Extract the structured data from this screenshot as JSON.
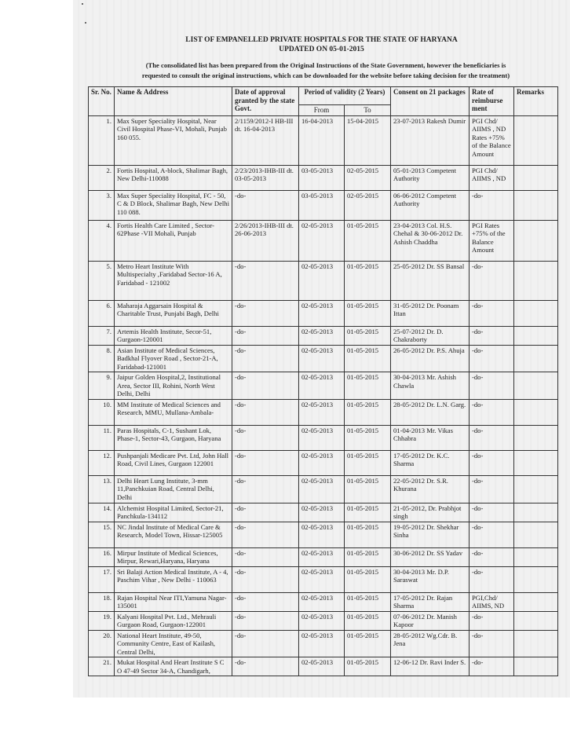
{
  "header": {
    "title": "LIST OF EMPANELLED PRIVATE HOSPITALS FOR THE STATE OF HARYANA",
    "updated": "UPDATED ON 05-01-2015",
    "note_line1": "(The consolidated list has been prepared from the Original Instructions of the State Government, however the beneficiaries is",
    "note_line2": "requested to consult the original instructions, which can be downloaded for the website before taking decision for the treatment)"
  },
  "table": {
    "columns": {
      "sr": "Sr. No.",
      "name": "Name & Address",
      "approval": "Date of approval granted by the state Govt.",
      "validity": "Period of validity (2 Years)",
      "from": "From",
      "to": "To",
      "consent": "Consent on 21 packages",
      "rate": "Rate of reimburse ment",
      "remarks": "Remarks"
    },
    "rows": [
      {
        "sr": "1.",
        "name": "Max Super Speciality Hospital, Near Civil Hospital Phase-VI, Mohali, Punjab 160 055.",
        "approval": "2/1159/2012-I HB-III dt. 16-04-2013",
        "from": "16-04-2013",
        "to": "15-04-2015",
        "consent": "23-07-2013 Rakesh Dumir",
        "rate": "PGI Chd/ AIIMS , ND Rates +75% of the Balance Amount",
        "remarks": ""
      },
      {
        "sr": "2.",
        "name": "Fortis Hospital, A-block, Shalimar Bagh, New Delhi-110088",
        "approval": "2/23/2013-IHB-III dt. 03-05-2013",
        "from": "03-05-2013",
        "to": "02-05-2015",
        "consent": "05-01-2013 Competent Authority",
        "rate": "PGI Chd/ AIIMS , ND",
        "remarks": ""
      },
      {
        "sr": "3.",
        "name": "Max Super Speciality Hospital, FC - 50, C & D Block, Shalimar Bagh, New Delhi 110 088.",
        "approval": "-do-",
        "from": "03-05-2013",
        "to": "02-05-2015",
        "consent": "06-06-2012 Competent Authority",
        "rate": "-do-",
        "remarks": ""
      },
      {
        "sr": "4.",
        "name": "Fortis Health Care Limited , Sector-62Phase -VII Mohali, Punjab",
        "approval": "2/26/2013-IHB-III dt. 26-06-2013",
        "from": "02-05-2013",
        "to": "01-05-2015",
        "consent": "23-04-2013 Col. H.S. Chehal & 30-06-2012 Dr. Ashish Chaddha",
        "rate": "PGI Rates +75% of the Balance Amount",
        "remarks": ""
      },
      {
        "sr": "5.",
        "name": "Metro Heart Institute With Multispecialty ,Faridabad Sector-16 A, Faridabad - 121002",
        "approval": "-do-",
        "from": "02-05-2013",
        "to": "01-05-2015",
        "consent": "25-05-2012 Dr. SS Bansal",
        "rate": "-do-",
        "remarks": ""
      },
      {
        "sr": "6.",
        "name": "Maharaja Aggarsain Hospital & Charitable Trust, Punjabi Bagh, Delhi",
        "approval": "-do-",
        "from": "02-05-2013",
        "to": "01-05-2015",
        "consent": "31-05-2012 Dr. Poonam Ittan",
        "rate": "-do-",
        "remarks": ""
      },
      {
        "sr": "7.",
        "name": "Artemis Health Institute, Secor-51, Gurgaon-120001",
        "approval": "-do-",
        "from": "02-05-2013",
        "to": "01-05-2015",
        "consent": "25-07-2012 Dr. D. Chakraborty",
        "rate": "-do-",
        "remarks": ""
      },
      {
        "sr": "8.",
        "name": "Asian Institute of Medical Sciences, Badkhal Flyover Road , Sector-21-A, Faridabad-121001",
        "approval": "-do-",
        "from": "02-05-2013",
        "to": "01-05-2015",
        "consent": "26-05-2012 Dr. P.S. Ahuja",
        "rate": "-do-",
        "remarks": ""
      },
      {
        "sr": "9.",
        "name": "Jaipur Golden Hospital,2, Institutional Area, Sector III, Rohini, North West Delhi, Delhi",
        "approval": "-do-",
        "from": "02-05-2013",
        "to": "01-05-2015",
        "consent": "30-04-2013 Mr. Ashish Chawla",
        "rate": "-do-",
        "remarks": ""
      },
      {
        "sr": "10.",
        "name": "MM Institute of Medical Sciences and Research, MMU, Mullana-Ambala-",
        "approval": "-do-",
        "from": "02-05-2013",
        "to": "01-05-2015",
        "consent": "28-05-2012 Dr. L.N. Garg.",
        "rate": "-do-",
        "remarks": ""
      },
      {
        "sr": "11.",
        "name": "Paras Hospitals, C-1, Sushant Lok, Phase-1, Sector-43, Gurgaon, Haryana",
        "approval": "-do-",
        "from": "02-05-2013",
        "to": "01-05-2015",
        "consent": "01-04-2013 Mr. Vikas Chhabra",
        "rate": "-do-",
        "remarks": ""
      },
      {
        "sr": "12.",
        "name": "Pushpanjali Medicare Pvt. Ltd, John Hall Road, Civil Lines, Gurgaon 122001",
        "approval": "-do-",
        "from": "02-05-2013",
        "to": "01-05-2015",
        "consent": "17-05-2012 Dr. K.C. Sharma",
        "rate": "-do-",
        "remarks": ""
      },
      {
        "sr": "13.",
        "name": "Delhi Heart Lung Institute, 3-mm 11,Panchkuian Road, Central Delhi, Delhi",
        "approval": "-do-",
        "from": "02-05-2013",
        "to": "01-05-2015",
        "consent": "22-05-2012 Dr. S.R. Khurana",
        "rate": "-do-",
        "remarks": ""
      },
      {
        "sr": "14.",
        "name": "Alchemist Hospital Limited, Sector-21, Panchkula-134112",
        "approval": "-do-",
        "from": "02-05-2013",
        "to": "01-05-2015",
        "consent": "21-05-2012, Dr. Prabhjot singh",
        "rate": "-do-",
        "remarks": ""
      },
      {
        "sr": "15.",
        "name": "NC Jindal Institute of Medical Care & Research, Model Town, Hissar-125005",
        "approval": "-do-",
        "from": "02-05-2013",
        "to": "01-05-2015",
        "consent": "19-05-2012 Dr. Shekhar Sinha",
        "rate": "-do-",
        "remarks": ""
      },
      {
        "sr": "16.",
        "name": "Mirpur Institute of Medical Sciences, Mirpur, Rewari,Haryana, Haryana",
        "approval": "-do-",
        "from": "02-05-2013",
        "to": "01-05-2015",
        "consent": "30-06-2012 Dr. SS Yadav",
        "rate": "-do-",
        "remarks": ""
      },
      {
        "sr": "17.",
        "name": "Sri Balaji Action Medical Institute, A - 4, Paschim Vihar , New Delhi - 110063",
        "approval": "-do-",
        "from": "02-05-2013",
        "to": "01-05-2015",
        "consent": "30-04-2013 Mr. D.P. Saraswat",
        "rate": "-do-",
        "remarks": ""
      },
      {
        "sr": "18.",
        "name": "Rajan Hospital Near ITI,Yamuna Nagar-135001",
        "approval": "-do-",
        "from": "02-05-2013",
        "to": "01-05-2015",
        "consent": "17-05-2012 Dr. Rajan Sharma",
        "rate": "PGI,Chd/ AIIMS, ND",
        "remarks": ""
      },
      {
        "sr": "19.",
        "name": "Kalyani Hospital Pvt. Ltd., Mehrauli Gurgaon Road, Gurgaon-122001",
        "approval": "-do-",
        "from": "02-05-2013",
        "to": "01-05-2015",
        "consent": "07-06-2012 Dr. Manish Kapoor",
        "rate": "-do-",
        "remarks": ""
      },
      {
        "sr": "20.",
        "name": "National Heart Institute, 49-50, Community Centre, East of Kailash, Central Delhi,",
        "approval": "-do-",
        "from": "02-05-2013",
        "to": "01-05-2015",
        "consent": "28-05-2012 Wg.Cdr. B. Jena",
        "rate": "-do-",
        "remarks": ""
      },
      {
        "sr": "21.",
        "name": "Mukat Hospital And Heart Institute S C O 47-49 Sector 34-A, Chandigarh,",
        "approval": "-do-",
        "from": "02-05-2013",
        "to": "01-05-2015",
        "consent": "12-06-12 Dr. Ravi Inder S.",
        "rate": "-do-",
        "remarks": ""
      }
    ]
  }
}
